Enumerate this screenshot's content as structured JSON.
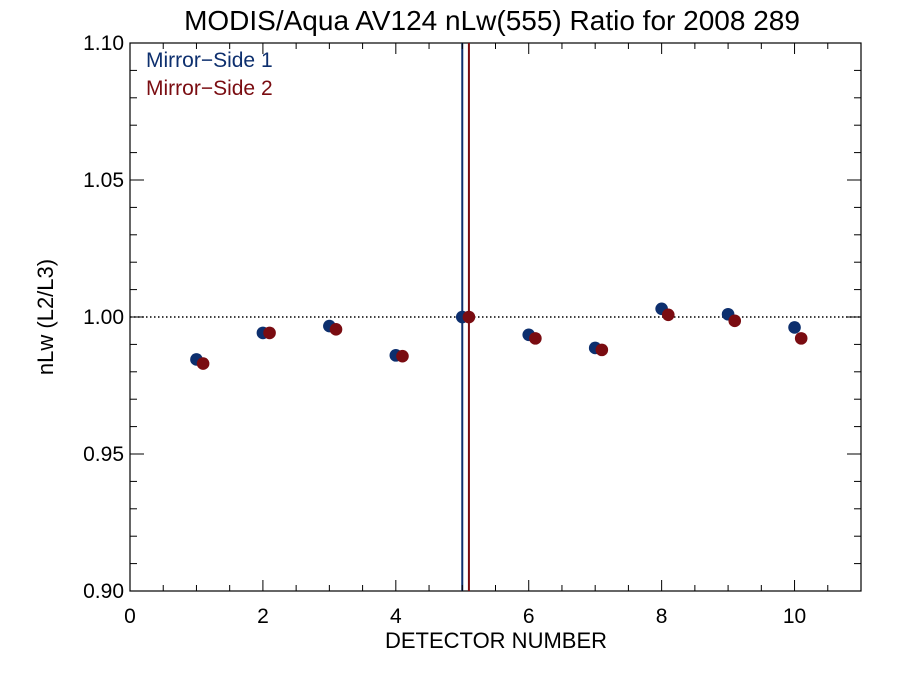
{
  "chart_data": {
    "type": "scatter",
    "title": "MODIS/Aqua AV124 nLw(555) Ratio for 2008 289",
    "xlabel": "DETECTOR NUMBER",
    "ylabel": "nLw (L2/L3)",
    "xlim": [
      0,
      11
    ],
    "ylim": [
      0.9,
      1.1
    ],
    "x_ticks": [
      0,
      2,
      4,
      6,
      8,
      10
    ],
    "x_tick_labels": [
      "0",
      "2",
      "4",
      "6",
      "8",
      "10"
    ],
    "y_ticks": [
      0.9,
      0.95,
      1.0,
      1.05,
      1.1
    ],
    "y_tick_labels": [
      "0.90",
      "0.95",
      "1.00",
      "1.05",
      "1.10"
    ],
    "reference_line_y": 1.0,
    "grid": false,
    "legend_position": "top-left",
    "series": [
      {
        "name": "Mirror−Side 1",
        "color": "#0d2f6e",
        "x": [
          1,
          2,
          3,
          4,
          5,
          6,
          7,
          8,
          9,
          10
        ],
        "y": [
          0.9845,
          0.9942,
          0.9967,
          0.986,
          1.0,
          0.9935,
          0.9887,
          1.003,
          1.001,
          0.9962
        ],
        "vertical_marker_x": 5.0
      },
      {
        "name": "Mirror−Side 2",
        "color": "#7a0c11",
        "x": [
          1.1,
          2.1,
          3.1,
          4.1,
          5.1,
          6.1,
          7.1,
          8.1,
          9.1,
          10.1
        ],
        "y": [
          0.983,
          0.9942,
          0.9955,
          0.9857,
          1.0,
          0.9922,
          0.988,
          1.0008,
          0.9986,
          0.9922
        ],
        "vertical_marker_x": 5.1
      }
    ]
  }
}
